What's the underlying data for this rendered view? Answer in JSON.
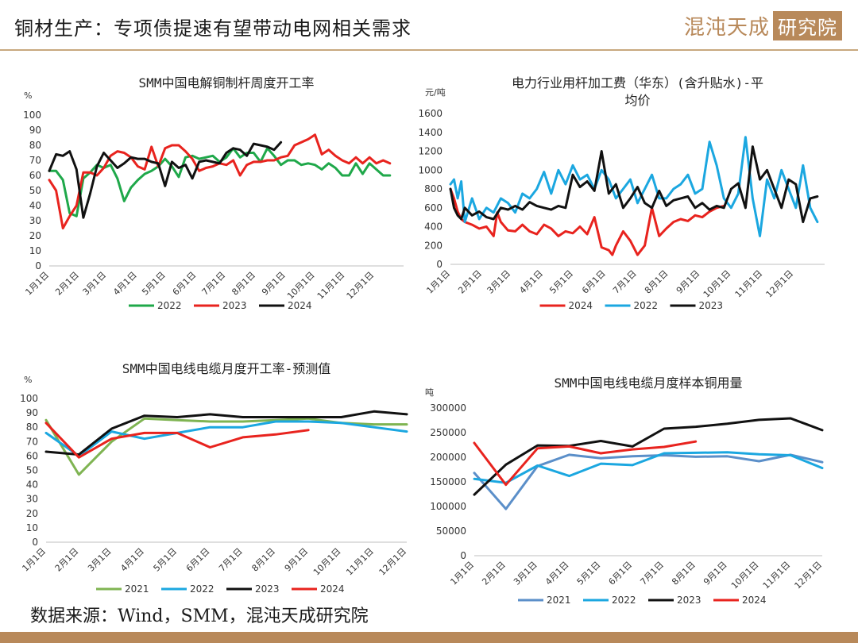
{
  "header": {
    "title": "铜材生产：专项债提速有望带动电网相关需求",
    "brand_main": "混沌天成",
    "brand_box": "研究院"
  },
  "source": "数据来源：Wind，SMM，混沌天成研究院",
  "chart_data": [
    {
      "id": "c1",
      "type": "line",
      "title": "SMM中国电解铜制杆周度开工率",
      "unit": "%",
      "ylim": [
        0,
        100
      ],
      "yticks": [
        0,
        10,
        20,
        30,
        40,
        50,
        60,
        70,
        80,
        90,
        100
      ],
      "xlim": [
        0,
        52
      ],
      "x_categories": [
        "1月1日",
        "2月1日",
        "3月1日",
        "4月1日",
        "5月1日",
        "6月1日",
        "7月1日",
        "8月1日",
        "9月1日",
        "10月1日",
        "11月1日",
        "12月1日"
      ],
      "x_category_pos": [
        0,
        4.4,
        8.4,
        12.9,
        17.1,
        21.6,
        25.9,
        30.3,
        34.7,
        39.0,
        43.4,
        47.7
      ],
      "legend_position": "bottom",
      "series": [
        {
          "name": "2022",
          "color": "#1fa84a",
          "x": [
            0,
            1,
            2,
            3,
            4,
            5,
            6,
            7,
            8,
            9,
            10,
            11,
            12,
            13,
            14,
            15,
            16,
            17,
            18,
            19,
            20,
            21,
            22,
            23,
            24,
            25,
            26,
            27,
            28,
            29,
            30,
            31,
            32,
            33,
            34,
            35,
            36,
            37,
            38,
            39,
            40,
            41,
            42,
            43,
            44,
            45,
            46,
            47,
            48,
            49,
            50
          ],
          "y": [
            63,
            63,
            57,
            35,
            33,
            58,
            62,
            67,
            65,
            67,
            58,
            43,
            52,
            57,
            61,
            63,
            66,
            71,
            66,
            59,
            72,
            73,
            71,
            72,
            73,
            69,
            72,
            78,
            72,
            75,
            75,
            69,
            78,
            73,
            67,
            70,
            70,
            67,
            68,
            67,
            64,
            68,
            65,
            60,
            60,
            68,
            61,
            68,
            64,
            60,
            60
          ]
        },
        {
          "name": "2023",
          "color": "#e8231e",
          "x": [
            0,
            1,
            2,
            3,
            4,
            5,
            6,
            7,
            8,
            9,
            10,
            11,
            12,
            13,
            14,
            15,
            16,
            17,
            18,
            19,
            20,
            21,
            22,
            23,
            24,
            25,
            26,
            27,
            28,
            29,
            30,
            31,
            32,
            33,
            34,
            35,
            36,
            37,
            38,
            39,
            40,
            41,
            42,
            43,
            44,
            45,
            46,
            47,
            48,
            49,
            50
          ],
          "y": [
            57,
            50,
            25,
            33,
            40,
            62,
            62,
            60,
            65,
            73,
            76,
            75,
            72,
            66,
            64,
            79,
            66,
            78,
            80,
            80,
            76,
            71,
            63,
            65,
            66,
            68,
            67,
            70,
            60,
            67,
            69,
            69,
            70,
            70,
            72,
            73,
            80,
            82,
            84,
            87,
            74,
            77,
            73,
            70,
            68,
            72,
            68,
            72,
            68,
            70,
            68
          ]
        },
        {
          "name": "2024",
          "color": "#111111",
          "x": [
            0,
            1,
            2,
            3,
            4,
            5,
            6,
            7,
            8,
            9,
            10,
            11,
            12,
            13,
            14,
            15,
            16,
            17,
            18,
            19,
            20,
            21,
            22,
            23,
            24,
            25,
            26,
            27,
            28,
            29,
            30,
            31,
            32,
            33,
            34
          ],
          "y": [
            63,
            74,
            73,
            76,
            64,
            32,
            48,
            66,
            75,
            70,
            65,
            68,
            72,
            71,
            71,
            69,
            68,
            53,
            69,
            65,
            67,
            58,
            69,
            70,
            69,
            68,
            75,
            78,
            77,
            73,
            81,
            80,
            79,
            77,
            82
          ]
        }
      ]
    },
    {
      "id": "c2",
      "type": "line",
      "title": "电力行业用杆加工费（华东）(含升贴水)-平均价",
      "title_lines": [
        "电力行业用杆加工费（华东）(含升贴水)-平",
        "均价"
      ],
      "unit": "元/吨",
      "ylim": [
        0,
        1600
      ],
      "yticks": [
        0,
        200,
        400,
        600,
        800,
        1000,
        1200,
        1400,
        1600
      ],
      "xlim": [
        0,
        52
      ],
      "x_categories": [
        "1月1日",
        "2月1日",
        "3月1日",
        "4月1日",
        "5月1日",
        "6月1日",
        "7月1日",
        "8月1日",
        "9月1日",
        "10月1日",
        "11月1日",
        "12月1日"
      ],
      "x_category_pos": [
        0,
        4.4,
        8.4,
        12.9,
        17.1,
        21.6,
        25.9,
        30.3,
        34.7,
        39.0,
        43.4,
        47.7
      ],
      "legend_position": "bottom",
      "series": [
        {
          "name": "2024",
          "color": "#e8231e",
          "x": [
            0,
            0.5,
            1,
            1.5,
            2,
            3,
            4,
            5,
            6,
            6.5,
            7,
            8,
            9,
            10,
            11,
            12,
            13,
            14,
            15,
            16,
            17,
            18,
            19,
            20,
            21,
            22,
            22.5,
            23,
            24,
            25,
            26,
            27,
            28,
            29,
            30,
            31,
            32,
            33,
            34,
            35,
            36,
            37,
            38
          ],
          "y": [
            800,
            700,
            560,
            480,
            450,
            420,
            380,
            400,
            300,
            550,
            450,
            360,
            350,
            420,
            350,
            320,
            420,
            380,
            300,
            350,
            330,
            400,
            320,
            500,
            180,
            150,
            100,
            200,
            350,
            250,
            100,
            200,
            600,
            300,
            380,
            450,
            480,
            460,
            520,
            500,
            560,
            600,
            620
          ]
        },
        {
          "name": "2022",
          "color": "#1ba7e0",
          "x": [
            0,
            0.5,
            1,
            1.5,
            2,
            3,
            4,
            5,
            6,
            7,
            8,
            9,
            10,
            11,
            12,
            13,
            14,
            15,
            16,
            17,
            18,
            19,
            20,
            21,
            22,
            23,
            24,
            25,
            26,
            27,
            28,
            29,
            30,
            31,
            32,
            33,
            34,
            35,
            36,
            37,
            38,
            39,
            40,
            41,
            42,
            43,
            44,
            45,
            46,
            47,
            48,
            49,
            50,
            51
          ],
          "y": [
            850,
            900,
            700,
            880,
            450,
            700,
            480,
            600,
            550,
            700,
            650,
            550,
            750,
            700,
            800,
            980,
            750,
            1000,
            850,
            1050,
            900,
            950,
            800,
            1000,
            900,
            700,
            800,
            900,
            650,
            800,
            950,
            700,
            700,
            800,
            850,
            950,
            750,
            800,
            1300,
            1050,
            700,
            600,
            750,
            1350,
            700,
            300,
            900,
            700,
            1000,
            800,
            600,
            1050,
            600,
            450
          ]
        },
        {
          "name": "2023",
          "color": "#111111",
          "x": [
            0,
            0.5,
            1,
            1.5,
            2,
            3,
            4,
            5,
            6,
            7,
            8,
            9,
            10,
            11,
            12,
            13,
            14,
            15,
            16,
            17,
            18,
            19,
            20,
            21,
            22,
            23,
            24,
            25,
            26,
            27,
            28,
            29,
            30,
            31,
            32,
            33,
            34,
            35,
            36,
            37,
            38,
            39,
            40,
            41,
            42,
            43,
            44,
            45,
            46,
            47,
            48,
            49,
            50,
            51
          ],
          "y": [
            800,
            600,
            520,
            480,
            600,
            520,
            560,
            500,
            480,
            600,
            580,
            620,
            580,
            660,
            620,
            600,
            580,
            620,
            600,
            950,
            820,
            880,
            780,
            1200,
            750,
            850,
            600,
            700,
            820,
            650,
            600,
            780,
            620,
            680,
            700,
            720,
            600,
            650,
            580,
            620,
            600,
            800,
            860,
            600,
            1250,
            900,
            1000,
            800,
            600,
            900,
            850,
            450,
            700,
            720
          ]
        }
      ]
    },
    {
      "id": "c3",
      "type": "line",
      "title": "SMM中国电线电缆月度开工率-预测值",
      "unit": "%",
      "ylim": [
        0,
        100
      ],
      "yticks": [
        0,
        10,
        20,
        30,
        40,
        50,
        60,
        70,
        80,
        90,
        100
      ],
      "xlim": [
        0,
        11
      ],
      "x_categories": [
        "1月1日",
        "2月1日",
        "3月1日",
        "4月1日",
        "5月1日",
        "6月1日",
        "7月1日",
        "8月1日",
        "9月1日",
        "10月1日",
        "11月1日",
        "12月1日"
      ],
      "x_category_pos": [
        0,
        1,
        2,
        3,
        4,
        5,
        6,
        7,
        8,
        9,
        10,
        11
      ],
      "legend_position": "bottom",
      "series": [
        {
          "name": "2021",
          "color": "#7fb452",
          "x": [
            0,
            1,
            2,
            3,
            4,
            5,
            6,
            7,
            8,
            9,
            10,
            11
          ],
          "y": [
            85,
            47,
            70,
            86,
            85,
            84,
            84,
            85,
            86,
            83,
            82,
            82
          ]
        },
        {
          "name": "2022",
          "color": "#1ba7e0",
          "x": [
            0,
            1,
            2,
            3,
            4,
            5,
            6,
            7,
            8,
            9,
            10,
            11
          ],
          "y": [
            76,
            60,
            77,
            72,
            76,
            80,
            80,
            84,
            84,
            83,
            80,
            77
          ]
        },
        {
          "name": "2023",
          "color": "#111111",
          "x": [
            0,
            1,
            2,
            3,
            4,
            5,
            6,
            7,
            8,
            9,
            10,
            11
          ],
          "y": [
            63,
            61,
            79,
            88,
            87,
            89,
            87,
            87,
            87,
            87,
            91,
            89
          ]
        },
        {
          "name": "2024",
          "color": "#e8231e",
          "x": [
            0,
            1,
            2,
            3,
            4,
            5,
            6,
            7,
            8
          ],
          "y": [
            83,
            59,
            72,
            76,
            76,
            66,
            73,
            75,
            78
          ]
        }
      ]
    },
    {
      "id": "c4",
      "type": "line",
      "title": "SMM中国电线电缆月度样本铜用量",
      "unit": "吨",
      "ylim": [
        0,
        300000
      ],
      "yticks": [
        0,
        50000,
        100000,
        150000,
        200000,
        250000,
        300000
      ],
      "xlim": [
        0,
        11
      ],
      "x_categories": [
        "1月1日",
        "2月1日",
        "3月1日",
        "4月1日",
        "5月1日",
        "6月1日",
        "7月1日",
        "8月1日",
        "9月1日",
        "10月1日",
        "11月1日",
        "12月1日"
      ],
      "x_category_pos": [
        0,
        1,
        2,
        3,
        4,
        5,
        6,
        7,
        8,
        9,
        10,
        11
      ],
      "legend_position": "bottom",
      "series": [
        {
          "name": "2021",
          "color": "#5b8fc9",
          "x": [
            0,
            1,
            2,
            3,
            4,
            5,
            6,
            7,
            8,
            9,
            10,
            11
          ],
          "y": [
            168000,
            95000,
            182000,
            205000,
            198000,
            202000,
            204000,
            201000,
            202000,
            192000,
            205000,
            190000
          ]
        },
        {
          "name": "2022",
          "color": "#1ba7e0",
          "x": [
            0,
            1,
            2,
            3,
            4,
            5,
            6,
            7,
            8,
            9,
            10,
            11
          ],
          "y": [
            156000,
            148000,
            183000,
            162000,
            187000,
            184000,
            208000,
            209000,
            210000,
            206000,
            204000,
            178000
          ]
        },
        {
          "name": "2023",
          "color": "#111111",
          "x": [
            0,
            1,
            2,
            3,
            4,
            5,
            6,
            7,
            8,
            9,
            10,
            11
          ],
          "y": [
            124000,
            185000,
            224000,
            223000,
            233000,
            222000,
            258000,
            262000,
            268000,
            276000,
            279000,
            255000
          ]
        },
        {
          "name": "2024",
          "color": "#e8231e",
          "x": [
            0,
            1,
            2,
            3,
            4,
            5,
            6,
            7
          ],
          "y": [
            229000,
            144000,
            218000,
            222000,
            208000,
            216000,
            221000,
            232000
          ]
        }
      ]
    }
  ]
}
